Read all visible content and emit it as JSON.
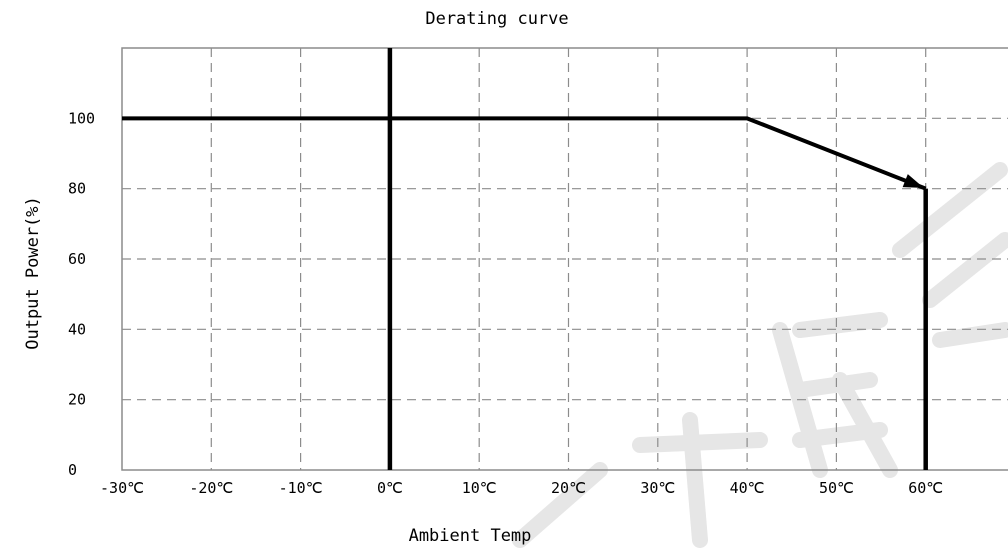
{
  "chart_data": {
    "type": "line",
    "title": "Derating curve",
    "xlabel": "Ambient Temp",
    "ylabel": "Output Power(%)",
    "x_tick_labels": [
      "-30℃",
      "-20℃",
      "-10℃",
      "0℃",
      "10℃",
      "20℃",
      "30℃",
      "40℃",
      "50℃",
      "60℃"
    ],
    "x_ticks": [
      -30,
      -20,
      -10,
      0,
      10,
      20,
      30,
      40,
      50,
      60
    ],
    "y_tick_labels": [
      "0",
      "20",
      "40",
      "60",
      "80",
      "100"
    ],
    "y_ticks": [
      0,
      20,
      40,
      60,
      80,
      100
    ],
    "xlim": [
      -30,
      70
    ],
    "ylim": [
      0,
      120
    ],
    "grid": true,
    "series": [
      {
        "x": [
          -30,
          40,
          60
        ],
        "y": [
          100,
          100,
          80
        ]
      }
    ],
    "limit_lines": [
      {
        "x": 0,
        "y_from": 0,
        "y_to": 120
      },
      {
        "x": 60,
        "y_from": 0,
        "y_to": 80
      }
    ],
    "colors": {
      "line": "#000000",
      "grid": "#8c8c8c",
      "watermark": "#e6e6e6"
    }
  }
}
